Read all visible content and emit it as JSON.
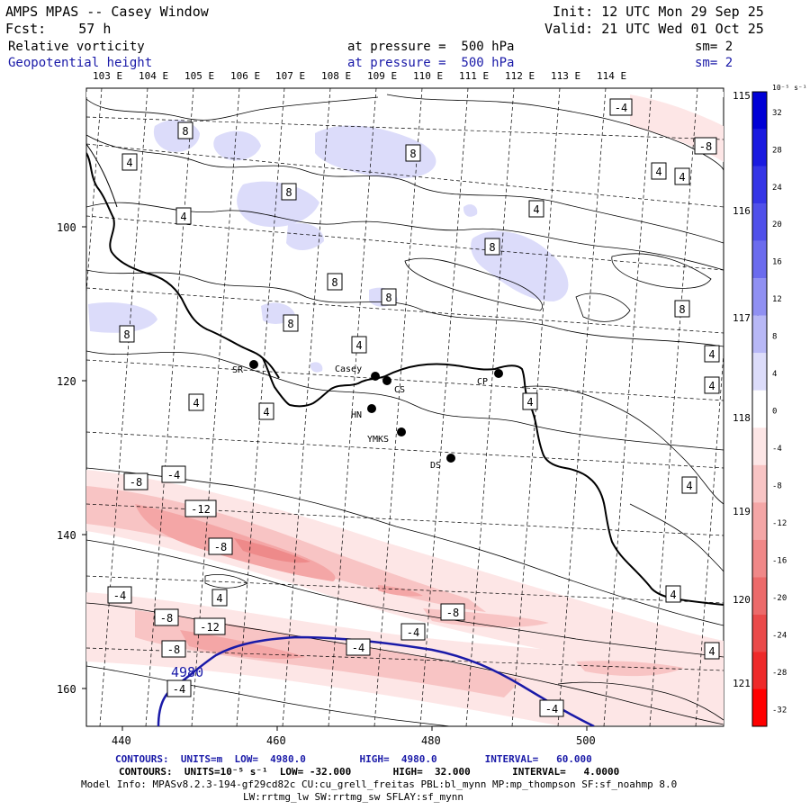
{
  "header": {
    "title": "AMPS MPAS -- Casey Window",
    "forecast": "Fcst:    57 h",
    "init": "Init: 12 UTC Mon 29 Sep 25",
    "valid": "Valid: 21 UTC Wed 01 Oct 25",
    "field1_name": "Relative vorticity",
    "field1_level": "at pressure =  500 hPa",
    "field1_sm": "sm= 2",
    "field2_name": "Geopotential height",
    "field2_level": "at pressure =  500 hPa",
    "field2_sm": "sm= 2"
  },
  "lon_labels": [
    "103 E",
    "104 E",
    "105 E",
    "106 E",
    "107 E",
    "108 E",
    "109 E",
    "110 E",
    "111 E",
    "112 E",
    "113 E",
    "114 E"
  ],
  "lat_right_labels": [
    "115 E",
    "116 E",
    "117 E",
    "118 E",
    "119 E",
    "120 E",
    "121 E"
  ],
  "x_ticks": [
    "440",
    "460",
    "480",
    "500"
  ],
  "y_ticks": [
    "100",
    "120",
    "140",
    "160"
  ],
  "stations": [
    {
      "name": "SR"
    },
    {
      "name": "Casey"
    },
    {
      "name": "CS"
    },
    {
      "name": "CP"
    },
    {
      "name": "HN"
    },
    {
      "name": "YMKS"
    },
    {
      "name": "DS"
    }
  ],
  "contour_labels": [
    "8",
    "8",
    "8",
    "8",
    "8",
    "8",
    "8",
    "8",
    "8",
    "4",
    "4",
    "4",
    "4",
    "4",
    "4",
    "4",
    "4",
    "4",
    "4",
    "4",
    "4",
    "4",
    "4",
    "-4",
    "-4",
    "-4",
    "-4",
    "-4",
    "-4",
    "-4",
    "-4",
    "-8",
    "-8",
    "-8",
    "-8",
    "-8",
    "-8",
    "-12",
    "-12"
  ],
  "height_label": "4980",
  "colorbar": {
    "unit": "10⁻⁵ s⁻¹",
    "ticks": [
      "32",
      "28",
      "24",
      "20",
      "16",
      "12",
      "8",
      "4",
      "0",
      "-4",
      "-8",
      "-12",
      "-16",
      "-20",
      "-24",
      "-28",
      "-32"
    ],
    "colors": [
      "#0000d6",
      "#1a1ae0",
      "#3535e6",
      "#5050ea",
      "#6b6bee",
      "#9090f2",
      "#b8b8f6",
      "#dcdcfa",
      "#ffffff",
      "#fde6e6",
      "#f8c4c4",
      "#f4a6a6",
      "#f08888",
      "#ec6a6a",
      "#ea4a4a",
      "#ee2a2a",
      "#ff0000"
    ]
  },
  "footer": {
    "line1": "CONTOURS:  UNITS=m  LOW=  4980.0         HIGH=  4980.0        INTERVAL=   60.000",
    "line2": "CONTOURS:  UNITS=10⁻⁵ s⁻¹  LOW= -32.000       HIGH=  32.000       INTERVAL=   4.0000",
    "line3": "Model Info: MPASv8.2.3-194-gf29cd82c CU:cu_grell_freitas PBL:bl_mynn MP:mp_thompson SF:sf_noahmp 8.0",
    "line4": "LW:rrtmg_lw SW:rrtmg_sw SFLAY:sf_mynn"
  }
}
